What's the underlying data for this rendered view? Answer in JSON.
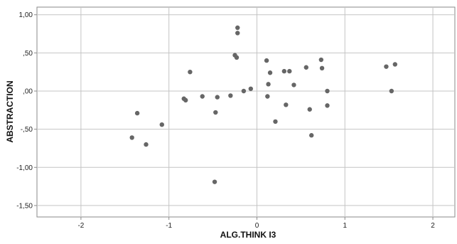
{
  "chart_data": {
    "type": "scatter",
    "title": "",
    "xlabel": "ALG.THINK I3",
    "ylabel": "ABSTRACTION",
    "xlim": [
      -2.5,
      2.25
    ],
    "ylim": [
      -1.65,
      1.1
    ],
    "x_ticks": [
      -2,
      -1,
      0,
      1,
      2
    ],
    "x_tick_labels": [
      "-2",
      "-1",
      "0",
      "1",
      "2"
    ],
    "y_ticks": [
      1.0,
      0.5,
      0.0,
      -0.5,
      -1.0,
      -1.5
    ],
    "y_tick_labels": [
      "1,00",
      ",50",
      ",00",
      "-,50",
      "-1,00",
      "-1,50"
    ],
    "grid": true,
    "marker_color": "#666666",
    "points": [
      {
        "x": -1.42,
        "y": -0.61
      },
      {
        "x": -1.36,
        "y": -0.29
      },
      {
        "x": -1.26,
        "y": -0.7
      },
      {
        "x": -1.08,
        "y": -0.44
      },
      {
        "x": -0.83,
        "y": -0.1
      },
      {
        "x": -0.81,
        "y": -0.12
      },
      {
        "x": -0.76,
        "y": 0.25
      },
      {
        "x": -0.62,
        "y": -0.07
      },
      {
        "x": -0.48,
        "y": -1.19
      },
      {
        "x": -0.47,
        "y": -0.28
      },
      {
        "x": -0.45,
        "y": -0.08
      },
      {
        "x": -0.3,
        "y": -0.06
      },
      {
        "x": -0.25,
        "y": 0.47
      },
      {
        "x": -0.23,
        "y": 0.44
      },
      {
        "x": -0.22,
        "y": 0.83
      },
      {
        "x": -0.22,
        "y": 0.76
      },
      {
        "x": -0.15,
        "y": 0.0
      },
      {
        "x": -0.07,
        "y": 0.03
      },
      {
        "x": 0.11,
        "y": 0.4
      },
      {
        "x": 0.12,
        "y": -0.07
      },
      {
        "x": 0.13,
        "y": 0.09
      },
      {
        "x": 0.15,
        "y": 0.24
      },
      {
        "x": 0.21,
        "y": -0.4
      },
      {
        "x": 0.31,
        "y": 0.26
      },
      {
        "x": 0.33,
        "y": -0.18
      },
      {
        "x": 0.37,
        "y": 0.26
      },
      {
        "x": 0.42,
        "y": 0.08
      },
      {
        "x": 0.56,
        "y": 0.31
      },
      {
        "x": 0.6,
        "y": -0.24
      },
      {
        "x": 0.62,
        "y": -0.58
      },
      {
        "x": 0.73,
        "y": 0.41
      },
      {
        "x": 0.74,
        "y": 0.3
      },
      {
        "x": 0.8,
        "y": 0.0
      },
      {
        "x": 0.8,
        "y": -0.19
      },
      {
        "x": 1.47,
        "y": 0.32
      },
      {
        "x": 1.53,
        "y": 0.0
      },
      {
        "x": 1.57,
        "y": 0.35
      }
    ]
  }
}
